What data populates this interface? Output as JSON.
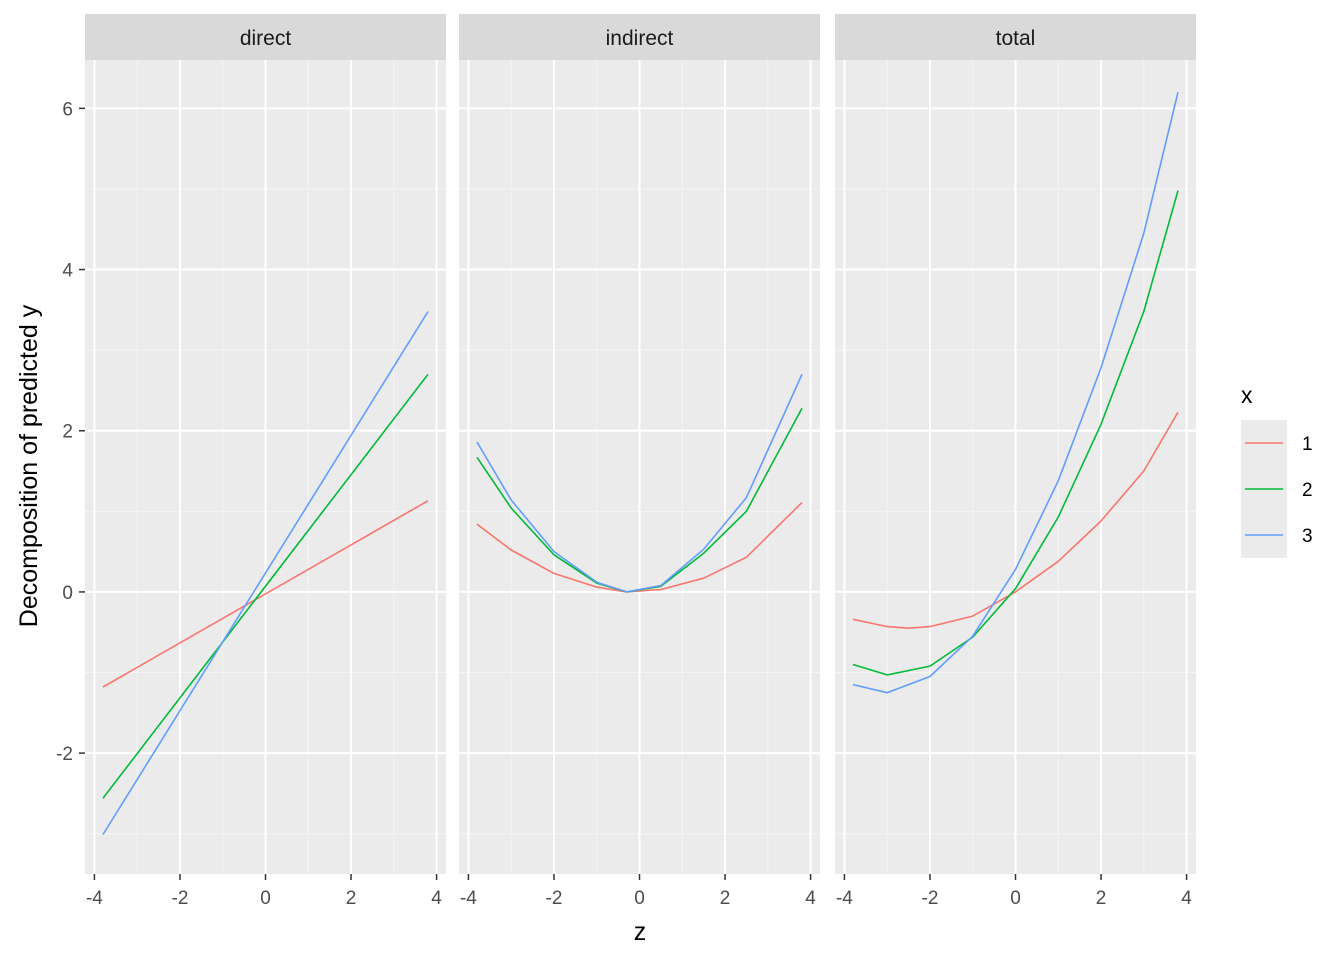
{
  "chart_data": {
    "type": "line",
    "xlabel": "z",
    "ylabel": "Decomposition of predicted y",
    "xlim": [
      -4,
      4
    ],
    "ylim": [
      -3.5,
      6.6
    ],
    "x_ticks": [
      "-4",
      "-2",
      "0",
      "2",
      "4"
    ],
    "y_ticks": [
      "-2",
      "0",
      "2",
      "4",
      "6"
    ],
    "grid": true,
    "legend": {
      "title": "x",
      "position": "right",
      "entries": [
        {
          "label": "1",
          "color": "#F8766D"
        },
        {
          "label": "2",
          "color": "#00BA38"
        },
        {
          "label": "3",
          "color": "#619CFF"
        }
      ]
    },
    "panels": [
      {
        "title": "direct",
        "series": [
          {
            "name": "1",
            "color": "#F8766D",
            "x": [
              -3.8,
              3.8
            ],
            "y": [
              -1.18,
              1.13
            ]
          },
          {
            "name": "2",
            "color": "#00BA38",
            "x": [
              -3.8,
              3.8
            ],
            "y": [
              -2.56,
              2.7
            ]
          },
          {
            "name": "3",
            "color": "#619CFF",
            "x": [
              -3.8,
              3.8
            ],
            "y": [
              -3.01,
              3.48
            ]
          }
        ]
      },
      {
        "title": "indirect",
        "series": [
          {
            "name": "1",
            "color": "#F8766D",
            "x": [
              -3.8,
              -3.0,
              -2.0,
              -1.0,
              -0.3,
              0.5,
              1.5,
              2.5,
              3.8
            ],
            "y": [
              0.84,
              0.52,
              0.23,
              0.06,
              0.0,
              0.03,
              0.17,
              0.43,
              1.11
            ]
          },
          {
            "name": "2",
            "color": "#00BA38",
            "x": [
              -3.8,
              -3.0,
              -2.0,
              -1.0,
              -0.3,
              0.5,
              1.5,
              2.5,
              3.8
            ],
            "y": [
              1.67,
              1.04,
              0.46,
              0.11,
              0.0,
              0.07,
              0.48,
              1.0,
              2.28
            ]
          },
          {
            "name": "3",
            "color": "#619CFF",
            "x": [
              -3.8,
              -3.0,
              -2.0,
              -1.0,
              -0.3,
              0.5,
              1.5,
              2.5,
              3.8
            ],
            "y": [
              1.86,
              1.14,
              0.5,
              0.12,
              0.0,
              0.08,
              0.53,
              1.17,
              2.7
            ]
          }
        ]
      },
      {
        "title": "total",
        "series": [
          {
            "name": "1",
            "color": "#F8766D",
            "x": [
              -3.8,
              -3.0,
              -2.5,
              -2.0,
              -1.0,
              0.0,
              1.0,
              2.0,
              3.0,
              3.8
            ],
            "y": [
              -0.34,
              -0.43,
              -0.45,
              -0.43,
              -0.3,
              0.0,
              0.38,
              0.88,
              1.5,
              2.23
            ]
          },
          {
            "name": "2",
            "color": "#00BA38",
            "x": [
              -3.8,
              -3.0,
              -2.0,
              -1.0,
              0.0,
              1.0,
              2.0,
              3.0,
              3.8
            ],
            "y": [
              -0.9,
              -1.03,
              -0.92,
              -0.56,
              0.04,
              0.93,
              2.08,
              3.48,
              4.98
            ]
          },
          {
            "name": "3",
            "color": "#619CFF",
            "x": [
              -3.8,
              -3.0,
              -2.0,
              -1.0,
              0.0,
              1.0,
              2.0,
              3.0,
              3.8
            ],
            "y": [
              -1.15,
              -1.25,
              -1.05,
              -0.55,
              0.28,
              1.38,
              2.78,
              4.45,
              6.2
            ]
          }
        ]
      }
    ]
  }
}
